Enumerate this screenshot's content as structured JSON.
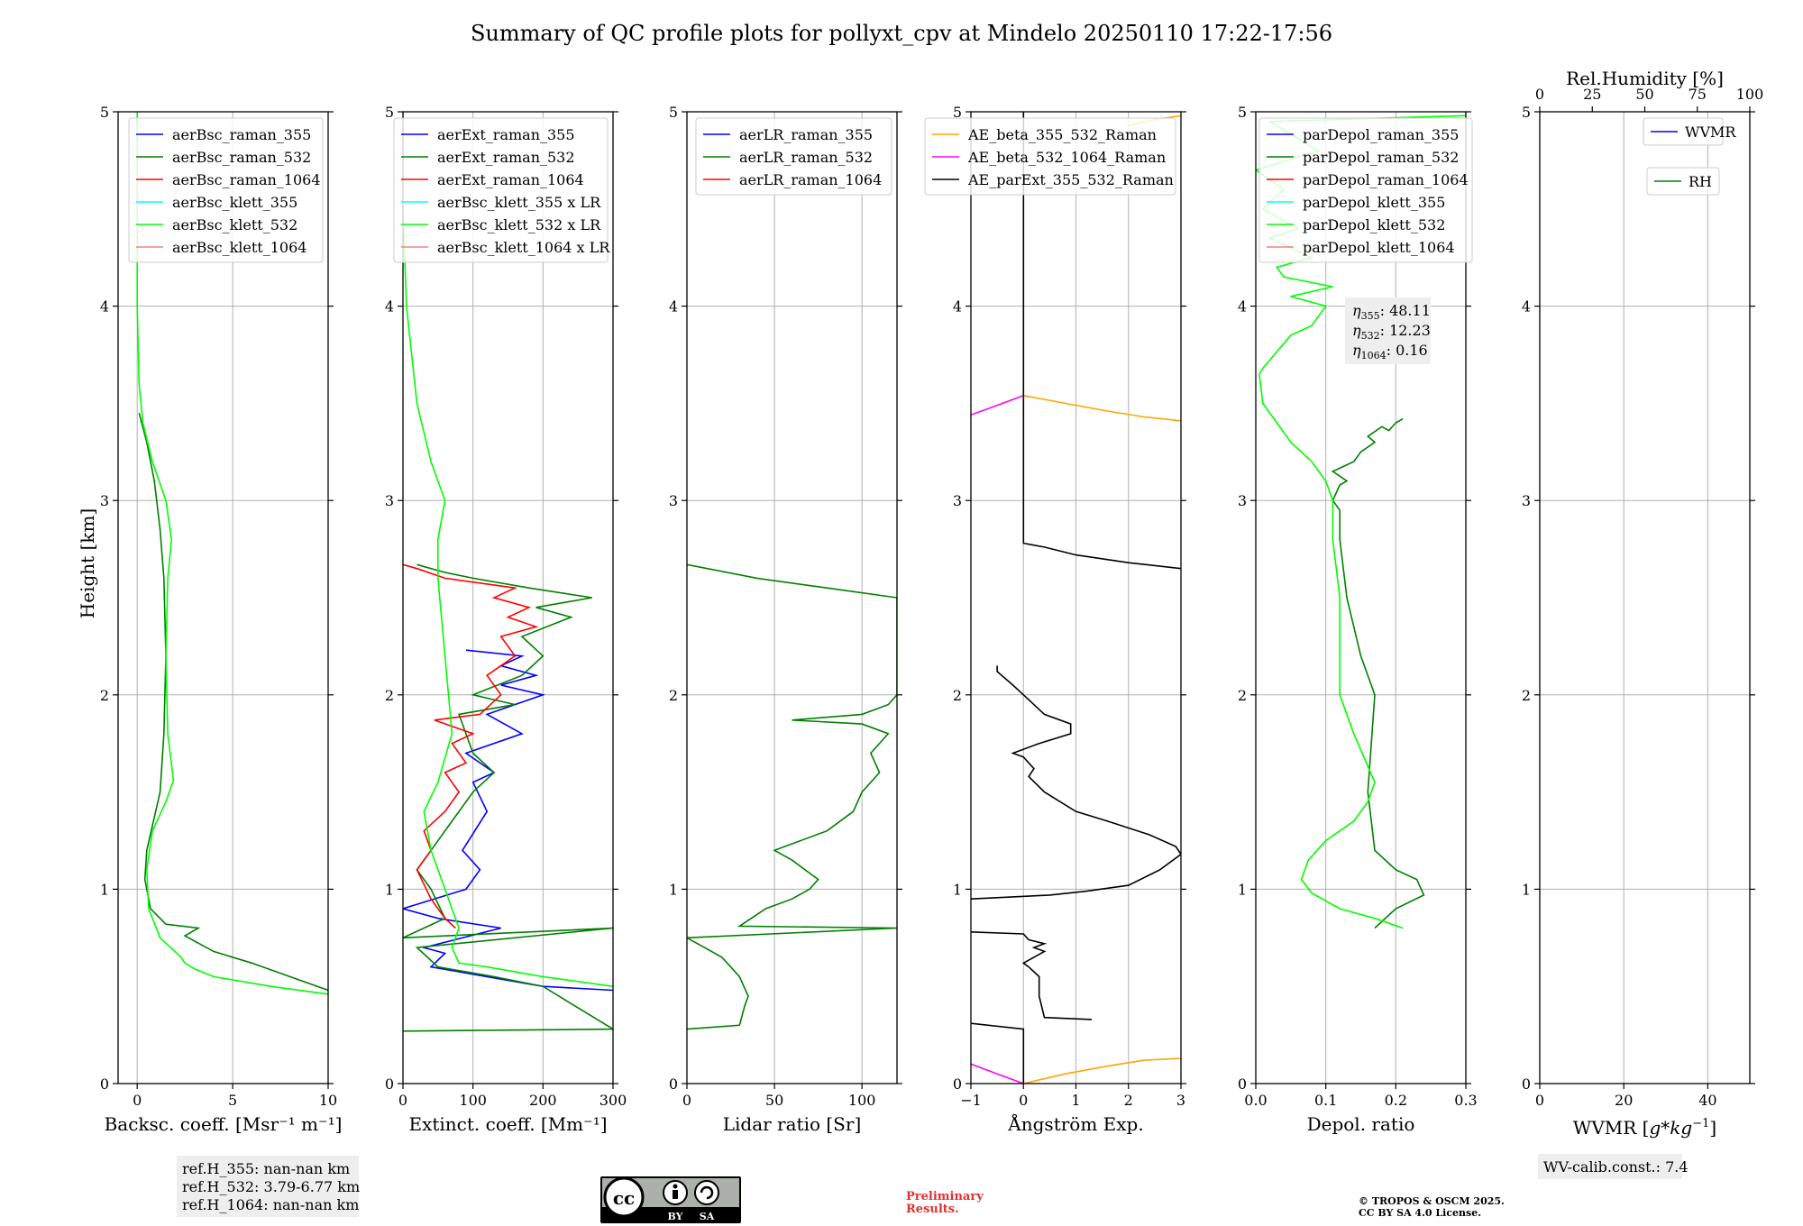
{
  "figure": {
    "title": "Summary of QC profile plots for pollyxt_cpv at Mindelo 20250110 17:22-17:56",
    "ylabel": "Height [km]",
    "ref_heights": [
      "ref.H_355: nan-nan km",
      "ref.H_532: 3.79-6.77 km",
      "ref.H_1064: nan-nan km"
    ],
    "license_badge": [
      "BY",
      "SA"
    ],
    "preliminary": [
      "Preliminary",
      "Results."
    ],
    "copyright": [
      "© TROPOS & OSCM 2025.",
      "CC BY SA 4.0 License."
    ],
    "wv_calib": "WV-calib.const.: 7.4",
    "eta_labels": [
      "$\\eta_{355}$: 48.11",
      "$\\eta_{532}$: 12.23",
      "$\\eta_{1064}$: 0.16"
    ],
    "eta_names": [
      "η",
      "η",
      "η"
    ],
    "eta_subs": [
      "355",
      "532",
      "1064"
    ],
    "eta_values": [
      ": 48.11",
      ": 12.23",
      ": 0.16"
    ]
  },
  "colors": {
    "blue": "#0000ff",
    "darkgreen": "#007f00",
    "red": "#ff0000",
    "cyan": "#00ffff",
    "lime": "#00ff00",
    "salmon": "#f08080",
    "orange": "#ffa500",
    "magenta": "#ff00ff",
    "black": "#000000"
  },
  "chart_data": [
    {
      "type": "line",
      "xlabel": "Backsc. coeff. [Msr⁻¹ m⁻¹]",
      "ylabel": "Height [km]",
      "xlim": [
        -1,
        10
      ],
      "ylim": [
        0,
        5
      ],
      "xticks": [
        0,
        5,
        10
      ],
      "yticks": [
        0,
        1,
        2,
        3,
        4,
        5
      ],
      "grid": true,
      "legend_position": "upper-right",
      "legend": [
        "aerBsc_raman_355",
        "aerBsc_raman_532",
        "aerBsc_raman_1064",
        "aerBsc_klett_355",
        "aerBsc_klett_532",
        "aerBsc_klett_1064"
      ],
      "legend_colors": [
        "#0000ff",
        "#007f00",
        "#ff0000",
        "#00ffff",
        "#00ff00",
        "#f08080"
      ],
      "series": [
        {
          "name": "aerBsc_raman_532",
          "color": "#007f00",
          "x": [
            10,
            8,
            6,
            4,
            2.5,
            3.2,
            1.5,
            0.7,
            0.4,
            0.5,
            1.2,
            1.4,
            1.5,
            1.4,
            1.2,
            0.9,
            0.5,
            0.1
          ],
          "y": [
            0.48,
            0.55,
            0.62,
            0.68,
            0.76,
            0.8,
            0.82,
            0.9,
            1.05,
            1.2,
            1.5,
            1.8,
            2.2,
            2.6,
            2.85,
            3.1,
            3.3,
            3.45
          ]
        },
        {
          "name": "aerBsc_klett_532",
          "color": "#00ff00",
          "x": [
            10,
            7,
            4,
            3,
            2.5,
            2.3,
            1.2,
            0.6,
            0.5,
            0.8,
            1.5,
            1.9,
            1.6,
            1.5,
            1.6,
            1.8,
            1.5,
            0.8,
            0.3,
            0.1,
            0,
            0,
            0,
            0
          ],
          "y": [
            0.46,
            0.5,
            0.55,
            0.59,
            0.62,
            0.65,
            0.75,
            0.9,
            1.1,
            1.3,
            1.45,
            1.56,
            1.8,
            2.2,
            2.6,
            2.8,
            3.0,
            3.2,
            3.4,
            3.6,
            4.0,
            4.5,
            4.9,
            5.0
          ]
        }
      ]
    },
    {
      "type": "line",
      "xlabel": "Extinct. coeff. [Mm⁻¹]",
      "xlim": [
        0,
        300
      ],
      "ylim": [
        0,
        5
      ],
      "xticks": [
        0,
        100,
        200,
        300
      ],
      "yticks": [
        0,
        1,
        2,
        3,
        4,
        5
      ],
      "grid": true,
      "legend_position": "upper-right",
      "legend": [
        "aerExt_raman_355",
        "aerExt_raman_532",
        "aerExt_raman_1064",
        "aerBsc_klett_355 x LR",
        "aerBsc_klett_532 x LR",
        "aerBsc_klett_1064 x LR"
      ],
      "legend_colors": [
        "#0000ff",
        "#007f00",
        "#ff0000",
        "#00ffff",
        "#00ff00",
        "#f08080"
      ],
      "series": [
        {
          "name": "aerExt_raman_355",
          "color": "#0000ff",
          "x": [
            300,
            200,
            120,
            40,
            60,
            30,
            140,
            50,
            0,
            90,
            110,
            85,
            120,
            100,
            130,
            90,
            170,
            120,
            200,
            140,
            190,
            140,
            170,
            90
          ],
          "y": [
            0.48,
            0.5,
            0.55,
            0.6,
            0.67,
            0.7,
            0.8,
            0.85,
            0.9,
            1.0,
            1.1,
            1.2,
            1.4,
            1.55,
            1.6,
            1.7,
            1.8,
            1.9,
            2.0,
            2.05,
            2.1,
            2.15,
            2.2,
            2.23
          ]
        },
        {
          "name": "aerExt_raman_532",
          "color": "#007f00",
          "x": [
            0,
            300,
            200,
            130,
            50,
            20,
            300,
            0,
            60,
            40,
            20,
            40,
            70,
            100,
            130,
            100,
            80,
            160,
            100,
            170,
            200,
            170,
            240,
            190,
            270,
            180,
            100,
            60,
            20
          ],
          "y": [
            0.27,
            0.28,
            0.5,
            0.55,
            0.6,
            0.7,
            0.8,
            0.75,
            0.85,
            1.0,
            1.1,
            1.2,
            1.35,
            1.5,
            1.6,
            1.7,
            1.9,
            1.95,
            2.0,
            2.1,
            2.2,
            2.3,
            2.4,
            2.45,
            2.5,
            2.55,
            2.6,
            2.63,
            2.67
          ]
        },
        {
          "name": "aerExt_raman_1064",
          "color": "#ff0000",
          "x": [
            75,
            60,
            40,
            20,
            40,
            30,
            60,
            80,
            60,
            90,
            70,
            100,
            45,
            110,
            140,
            120,
            160,
            140,
            190,
            150,
            180,
            130,
            160,
            60,
            20,
            0
          ],
          "y": [
            0.8,
            0.85,
            0.95,
            1.1,
            1.2,
            1.3,
            1.4,
            1.5,
            1.6,
            1.65,
            1.75,
            1.8,
            1.87,
            1.9,
            2.0,
            2.1,
            2.2,
            2.3,
            2.35,
            2.4,
            2.45,
            2.5,
            2.55,
            2.6,
            2.65,
            2.67
          ]
        },
        {
          "name": "aerBsc_klett_532 x LR",
          "color": "#00ff00",
          "x": [
            300,
            200,
            120,
            80,
            70,
            80,
            60,
            40,
            30,
            50,
            70,
            60,
            50,
            50,
            60,
            40,
            20,
            5,
            0,
            0
          ],
          "y": [
            0.5,
            0.55,
            0.6,
            0.62,
            0.7,
            0.8,
            1.0,
            1.2,
            1.4,
            1.55,
            1.8,
            2.2,
            2.6,
            2.8,
            3.0,
            3.2,
            3.5,
            4.0,
            4.5,
            5.0
          ]
        }
      ]
    },
    {
      "type": "line",
      "xlabel": "Lidar ratio [Sr]",
      "xlim": [
        0,
        120
      ],
      "ylim": [
        0,
        5
      ],
      "xticks": [
        0,
        50,
        100
      ],
      "yticks": [
        0,
        1,
        2,
        3,
        4,
        5
      ],
      "grid": true,
      "legend_position": "upper-right",
      "legend": [
        "aerLR_raman_355",
        "aerLR_raman_532",
        "aerLR_raman_1064"
      ],
      "legend_colors": [
        "#0000ff",
        "#007f00",
        "#ff0000"
      ],
      "series": [
        {
          "name": "aerLR_raman_532",
          "color": "#007f00",
          "x": [
            0,
            30,
            33,
            35,
            30,
            25,
            20,
            10,
            0,
            120,
            30,
            45,
            60,
            70,
            75,
            60,
            50,
            80,
            95,
            100,
            110,
            105,
            115,
            100,
            60,
            100,
            115,
            120,
            120,
            80,
            40,
            0
          ],
          "y": [
            0.28,
            0.3,
            0.4,
            0.45,
            0.55,
            0.6,
            0.65,
            0.7,
            0.75,
            0.8,
            0.81,
            0.9,
            0.95,
            1.0,
            1.05,
            1.15,
            1.2,
            1.3,
            1.4,
            1.5,
            1.6,
            1.7,
            1.8,
            1.85,
            1.87,
            1.9,
            1.95,
            2.0,
            2.5,
            2.55,
            2.6,
            2.67
          ]
        }
      ]
    },
    {
      "type": "line",
      "xlabel": "Ångström Exp.",
      "xlim": [
        -1,
        3
      ],
      "ylim": [
        0,
        5
      ],
      "xticks": [
        -1,
        0,
        1,
        2,
        3
      ],
      "xticklabels": [
        "−1",
        "0",
        "1",
        "2",
        "3"
      ],
      "yticks": [
        0,
        1,
        2,
        3,
        4,
        5
      ],
      "grid": true,
      "legend_position": "upper-right",
      "legend": [
        "AE_beta_355_532_Raman",
        "AE_beta_532_1064_Raman",
        "AE_parExt_355_532_Raman"
      ],
      "legend_colors": [
        "#ffa500",
        "#ff00ff",
        "#000000"
      ],
      "series": [
        {
          "name": "AE_beta_355_532_Raman",
          "color": "#ffa500",
          "x": [
            0,
            0.8,
            1.6,
            2.3,
            3.0
          ],
          "y": [
            0,
            0.05,
            0.09,
            0.12,
            0.13
          ]
        },
        {
          "name": "AE_beta_355_532_Raman",
          "color": "#ffa500",
          "x": [
            0,
            0.8,
            1.6,
            2.3,
            3.0
          ],
          "y": [
            3.54,
            3.5,
            3.46,
            3.43,
            3.41
          ]
        },
        {
          "name": "AE_beta_355_532_Raman",
          "color": "#ffa500",
          "x": [
            2.0,
            2.5,
            3.0
          ],
          "y": [
            4.93,
            4.96,
            4.98
          ]
        },
        {
          "name": "AE_beta_532_1064_Raman",
          "color": "#ff00ff",
          "x": [
            -1,
            -0.5,
            0
          ],
          "y": [
            0.1,
            0.05,
            0
          ]
        },
        {
          "name": "AE_beta_532_1064_Raman",
          "color": "#ff00ff",
          "x": [
            -1,
            -0.5,
            0
          ],
          "y": [
            3.44,
            3.49,
            3.54
          ]
        },
        {
          "name": "AE_parExt_355_532_Raman",
          "color": "#000000",
          "x": [
            0,
            0,
            -1
          ],
          "y": [
            0.0,
            0.28,
            0.31
          ]
        },
        {
          "name": "AE_parExt_355_532_Raman",
          "color": "#000000",
          "x": [
            1.3,
            0.4,
            0.3,
            0.3,
            0.1,
            0,
            0.2,
            0.4,
            0.2,
            0.4,
            0.1,
            0,
            -1
          ],
          "y": [
            0.33,
            0.34,
            0.45,
            0.55,
            0.6,
            0.62,
            0.65,
            0.68,
            0.7,
            0.72,
            0.74,
            0.77,
            0.78
          ]
        },
        {
          "name": "AE_parExt_355_532_Raman",
          "color": "#000000",
          "x": [
            -1,
            0.5,
            1.2,
            2.0,
            2.6,
            3.0,
            2.9,
            2.4,
            1.6,
            1.0,
            0.4,
            0.1,
            0.2,
            0,
            -0.2,
            0.3,
            0.9,
            0.9,
            0.4,
            0,
            -0.2,
            -0.5,
            -0.5
          ],
          "y": [
            0.95,
            0.97,
            0.99,
            1.02,
            1.1,
            1.18,
            1.22,
            1.28,
            1.35,
            1.4,
            1.5,
            1.58,
            1.62,
            1.68,
            1.7,
            1.75,
            1.8,
            1.85,
            1.9,
            2.0,
            2.05,
            2.12,
            2.15
          ]
        },
        {
          "name": "AE_parExt_355_532_Raman",
          "color": "#000000",
          "x": [
            3.0,
            2.0,
            1.0,
            0.4,
            0,
            0
          ],
          "y": [
            2.65,
            2.68,
            2.72,
            2.76,
            2.78,
            5.0
          ]
        }
      ]
    },
    {
      "type": "line",
      "xlabel": "Depol. ratio",
      "xlim": [
        0,
        0.3
      ],
      "ylim": [
        0,
        5
      ],
      "xticks": [
        0,
        0.1,
        0.2,
        0.3
      ],
      "xticklabels": [
        "0.0",
        "0.1",
        "0.2",
        "0.3"
      ],
      "yticks": [
        0,
        1,
        2,
        3,
        4,
        5
      ],
      "grid": true,
      "legend_position": "upper-left",
      "legend": [
        "parDepol_raman_355",
        "parDepol_raman_532",
        "parDepol_raman_1064",
        "parDepol_klett_355",
        "parDepol_klett_532",
        "parDepol_klett_1064"
      ],
      "legend_colors": [
        "#0000ff",
        "#007f00",
        "#ff0000",
        "#00ffff",
        "#00ff00",
        "#f08080"
      ],
      "series": [
        {
          "name": "parDepol_raman_532",
          "color": "#007f00",
          "x": [
            0.17,
            0.2,
            0.24,
            0.23,
            0.2,
            0.17,
            0.16,
            0.17,
            0.15,
            0.13,
            0.12,
            0.12,
            0.11,
            0.12,
            0.13,
            0.11,
            0.14,
            0.15,
            0.17,
            0.16,
            0.18,
            0.19,
            0.2,
            0.21
          ],
          "y": [
            0.8,
            0.9,
            0.97,
            1.05,
            1.1,
            1.2,
            1.5,
            2.0,
            2.2,
            2.5,
            2.8,
            2.95,
            3.0,
            3.08,
            3.1,
            3.15,
            3.2,
            3.25,
            3.3,
            3.33,
            3.38,
            3.36,
            3.4,
            3.42
          ]
        },
        {
          "name": "parDepol_klett_532",
          "color": "#00ff00",
          "x": [
            0.21,
            0.17,
            0.12,
            0.08,
            0.065,
            0.075,
            0.1,
            0.14,
            0.16,
            0.17,
            0.14,
            0.12,
            0.12,
            0.11,
            0.11,
            0.1,
            0.08,
            0.05,
            0.03,
            0.01,
            0.005,
            0.01,
            0.05,
            0.08,
            0.1,
            0.05,
            0.11,
            0.04,
            0.03,
            0.08,
            0.02,
            0.06,
            0.01,
            0.04,
            0.0,
            0.09,
            0.02,
            0.3
          ],
          "y": [
            0.8,
            0.85,
            0.9,
            0.98,
            1.05,
            1.15,
            1.25,
            1.35,
            1.45,
            1.55,
            1.8,
            2.0,
            2.5,
            2.8,
            3.0,
            3.1,
            3.2,
            3.3,
            3.4,
            3.5,
            3.65,
            3.68,
            3.85,
            3.9,
            4.0,
            4.05,
            4.1,
            4.15,
            4.2,
            4.25,
            4.35,
            4.4,
            4.5,
            4.6,
            4.7,
            4.8,
            4.95,
            4.98
          ]
        }
      ]
    },
    {
      "type": "line",
      "xlabel": "WVMR [$g*kg^{-1}$]",
      "xlim": [
        0,
        50
      ],
      "ylim": [
        0,
        5
      ],
      "xticks": [
        0,
        20,
        40
      ],
      "yticks": [
        0,
        1,
        2,
        3,
        4,
        5
      ],
      "top_axis": {
        "label": "Rel.Humidity [%]",
        "ticks": [
          0,
          25,
          50,
          75,
          100
        ]
      },
      "grid": true,
      "legend_position": "upper-right",
      "legend": [
        "WVMR",
        "RH"
      ],
      "legend_colors": [
        "#0000ff",
        "#007f00"
      ],
      "series": []
    }
  ]
}
